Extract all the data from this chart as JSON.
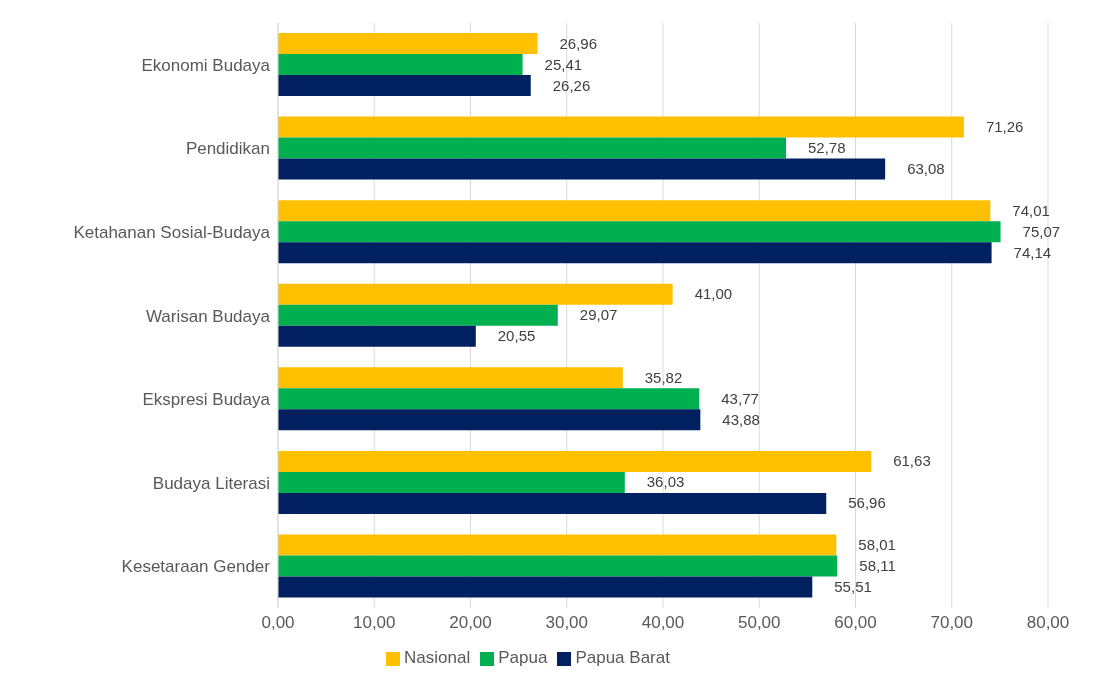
{
  "chart_data": {
    "type": "bar",
    "orientation": "horizontal",
    "categories": [
      "Ekonomi Budaya",
      "Pendidikan",
      "Ketahanan Sosial-Budaya",
      "Warisan Budaya",
      "Ekspresi Budaya",
      "Budaya Literasi",
      "Kesetaraan Gender"
    ],
    "series": [
      {
        "name": "Nasional",
        "color": "#ffc000",
        "values": [
          26.96,
          71.26,
          74.01,
          41.0,
          35.82,
          61.63,
          58.01
        ],
        "value_labels": [
          "26,96",
          "71,26",
          "74,01",
          "41,00",
          "35,82",
          "61,63",
          "58,01"
        ]
      },
      {
        "name": "Papua",
        "color": "#00b050",
        "values": [
          25.41,
          52.78,
          75.07,
          29.07,
          43.77,
          36.03,
          58.11
        ],
        "value_labels": [
          "25,41",
          "52,78",
          "75,07",
          "29,07",
          "43,77",
          "36,03",
          "58,11"
        ]
      },
      {
        "name": "Papua Barat",
        "color": "#002060",
        "values": [
          26.26,
          63.08,
          74.14,
          20.55,
          43.88,
          56.96,
          55.51
        ],
        "value_labels": [
          "26,26",
          "63,08",
          "74,14",
          "20,55",
          "43,88",
          "56,96",
          "55,51"
        ]
      }
    ],
    "xlim": [
      0,
      80
    ],
    "xticks": [
      {
        "value": 0,
        "label": "0,00"
      },
      {
        "value": 10,
        "label": "10,00"
      },
      {
        "value": 20,
        "label": "20,00"
      },
      {
        "value": 30,
        "label": "30,00"
      },
      {
        "value": 40,
        "label": "40,00"
      },
      {
        "value": 50,
        "label": "50,00"
      },
      {
        "value": 60,
        "label": "60,00"
      },
      {
        "value": 70,
        "label": "70,00"
      },
      {
        "value": 80,
        "label": "80,00"
      }
    ],
    "grid": "x",
    "legend": "bottom"
  }
}
